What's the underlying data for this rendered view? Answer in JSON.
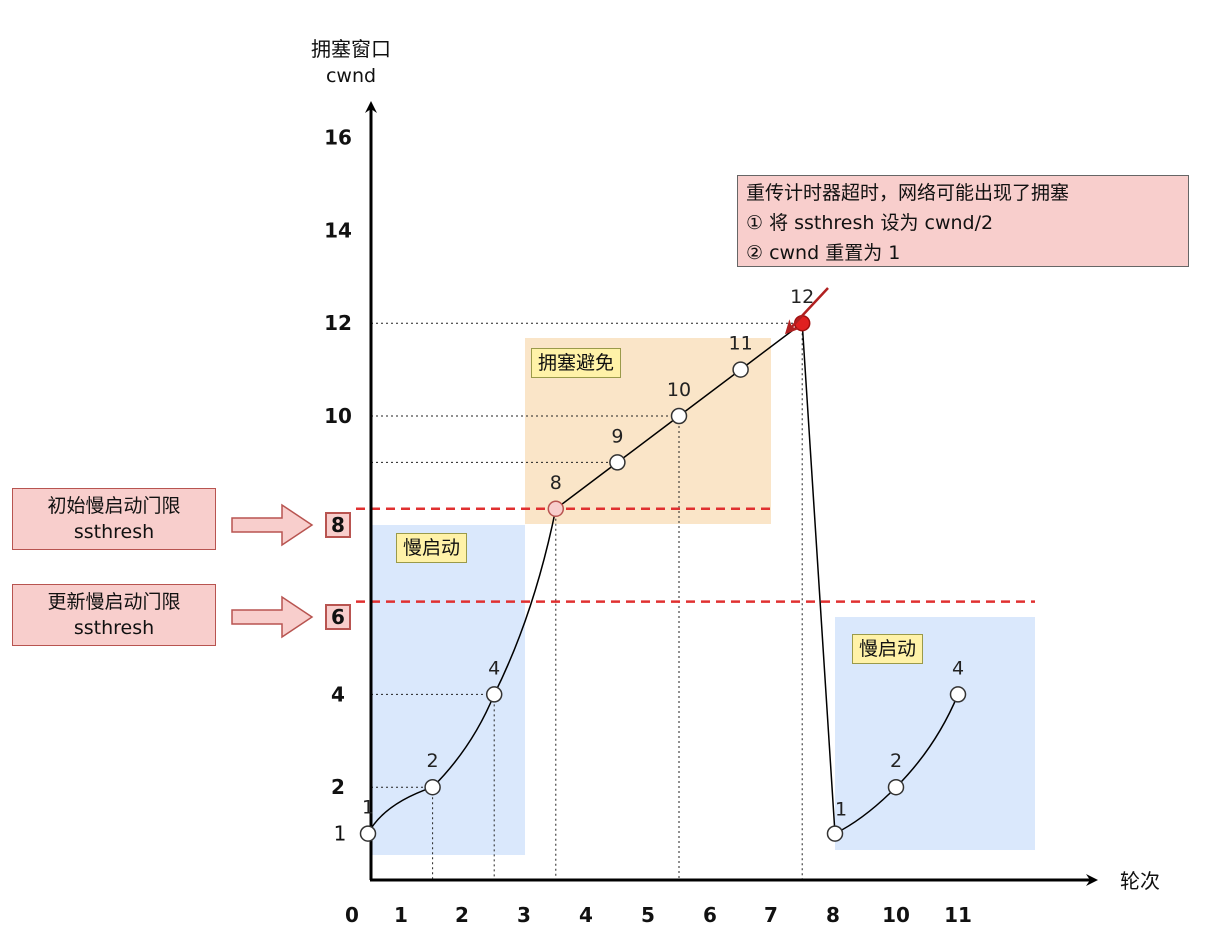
{
  "chart_data": {
    "type": "line",
    "ylabel": [
      "拥塞窗口",
      "cwnd"
    ],
    "xlabel": "轮次",
    "x_ticks": [
      "0",
      "1",
      "2",
      "3",
      "4",
      "5",
      "6",
      "7",
      "8",
      "10",
      "11"
    ],
    "y_ticks": [
      1,
      2,
      4,
      10,
      12,
      14,
      16
    ],
    "threshold_ticks": [
      8,
      6
    ],
    "ylim": [
      0,
      16
    ],
    "points": [
      {
        "x": 0,
        "y": 1,
        "label": "1"
      },
      {
        "x": 1,
        "y": 2,
        "label": "2"
      },
      {
        "x": 2,
        "y": 4,
        "label": "4"
      },
      {
        "x": 3,
        "y": 8,
        "label": "8"
      },
      {
        "x": 4,
        "y": 9,
        "label": "9"
      },
      {
        "x": 5,
        "y": 10,
        "label": "10"
      },
      {
        "x": 6,
        "y": 11,
        "label": "11"
      },
      {
        "x": 7,
        "y": 12,
        "label": "12"
      },
      {
        "x": 8,
        "y": 1,
        "label": "1"
      },
      {
        "x": 10,
        "y": 2,
        "label": "2"
      },
      {
        "x": 11,
        "y": 4,
        "label": "4"
      }
    ],
    "thresholds": [
      {
        "value": 8,
        "label_lines": [
          "初始慢启动门限",
          "ssthresh"
        ]
      },
      {
        "value": 6,
        "label_lines": [
          "更新慢启动门限",
          "ssthresh"
        ]
      }
    ],
    "regions": {
      "slow_start_1": "慢启动",
      "congestion_avoidance": "拥塞避免",
      "slow_start_2": "慢启动"
    },
    "annotation_lines": [
      "重传计时器超时，网络可能出现了拥塞",
      "① 将 ssthresh 设为 cwnd/2",
      "② cwnd 重置为 1"
    ],
    "colors": {
      "slow_start_fill": "#dae8fc",
      "avoidance_fill": "#fae5c8",
      "threshold_line": "#e03030",
      "timeout_point": "#e02020",
      "threshold_point": "#f8cecc",
      "arrow": "#b02020",
      "side_box": "#f8cecc",
      "label_box": "#fff2a8"
    }
  }
}
